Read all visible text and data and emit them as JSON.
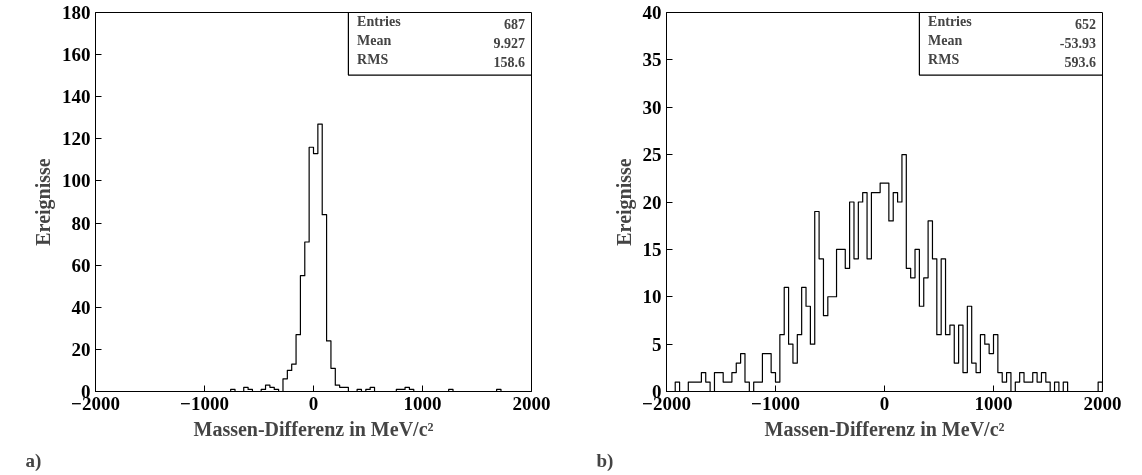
{
  "chart_data": [
    {
      "type": "histogram",
      "xlabel": "Massen-Differenz in MeV/c²",
      "ylabel": "Ereignisse",
      "annotations": [
        "a)",
        "Entries",
        "687",
        "Mean",
        "9.927",
        "RMS",
        "158.6"
      ],
      "bins": [
        -2000,
        -1960,
        -1920,
        -1880,
        -1840,
        -1800,
        -1760,
        -1720,
        -1680,
        -1640,
        -1600,
        -1560,
        -1520,
        -1480,
        -1440,
        -1400,
        -1360,
        -1320,
        -1280,
        -1240,
        -1200,
        -1160,
        -1120,
        -1080,
        -1040,
        -1000,
        -960,
        -920,
        -880,
        -840,
        -800,
        -760,
        -720,
        -680,
        -640,
        -600,
        -560,
        -520,
        -480,
        -440,
        -400,
        -360,
        -320,
        -280,
        -240,
        -200,
        -160,
        -120,
        -80,
        -40,
        0,
        40,
        80,
        120,
        160,
        200,
        240,
        280,
        320,
        360,
        400,
        440,
        480,
        520,
        560,
        600,
        640,
        680,
        720,
        760,
        800,
        840,
        880,
        920,
        960,
        1000,
        1040,
        1080,
        1120,
        1160,
        1200,
        1240,
        1280,
        1320,
        1360,
        1400,
        1440,
        1480,
        1520,
        1560,
        1600,
        1640,
        1680,
        1720,
        1760,
        1800,
        1840,
        1880,
        1920,
        1960,
        2000
      ],
      "values": [
        0,
        0,
        0,
        0,
        0,
        0,
        0,
        0,
        0,
        0,
        0,
        0,
        0,
        0,
        0,
        0,
        0,
        0,
        0,
        0,
        0,
        0,
        0,
        0,
        0,
        0,
        0,
        0,
        0,
        0,
        0,
        1,
        0,
        0,
        2,
        1,
        0,
        0,
        1,
        3,
        2,
        1,
        0,
        6,
        10,
        13,
        27,
        55,
        71,
        116,
        113,
        127,
        84,
        24,
        11,
        3,
        2,
        2,
        0,
        0,
        1,
        0,
        1,
        2,
        0,
        0,
        0,
        0,
        0,
        1,
        1,
        2,
        1,
        0,
        0,
        0,
        0,
        0,
        0,
        0,
        0,
        1,
        0,
        0,
        0,
        0,
        0,
        0,
        0,
        0,
        0,
        0,
        1,
        0,
        0,
        0,
        0,
        0,
        0,
        0
      ],
      "xlim": [
        -2000,
        2000
      ],
      "xticks": [
        -2000,
        -1000,
        0,
        1000,
        2000
      ],
      "ylim": [
        0,
        180
      ],
      "yticks": [
        0,
        20,
        40,
        60,
        80,
        100,
        120,
        140,
        160,
        180
      ]
    },
    {
      "type": "histogram",
      "xlabel": "Massen-Differenz in MeV/c²",
      "ylabel": "Ereignisse",
      "annotations": [
        "b)",
        "Entries",
        "652",
        "Mean",
        "-53.93",
        "RMS",
        "593.6"
      ],
      "bins": [
        -2000,
        -1960,
        -1920,
        -1880,
        -1840,
        -1800,
        -1760,
        -1720,
        -1680,
        -1640,
        -1600,
        -1560,
        -1520,
        -1480,
        -1440,
        -1400,
        -1360,
        -1320,
        -1280,
        -1240,
        -1200,
        -1160,
        -1120,
        -1080,
        -1040,
        -1000,
        -960,
        -920,
        -880,
        -840,
        -800,
        -760,
        -720,
        -680,
        -640,
        -600,
        -560,
        -520,
        -480,
        -440,
        -400,
        -360,
        -320,
        -280,
        -240,
        -200,
        -160,
        -120,
        -80,
        -40,
        0,
        40,
        80,
        120,
        160,
        200,
        240,
        280,
        320,
        360,
        400,
        440,
        480,
        520,
        560,
        600,
        640,
        680,
        720,
        760,
        800,
        840,
        880,
        920,
        960,
        1000,
        1040,
        1080,
        1120,
        1160,
        1200,
        1240,
        1280,
        1320,
        1360,
        1400,
        1440,
        1480,
        1520,
        1560,
        1600,
        1640,
        1680,
        1720,
        1760,
        1800,
        1840,
        1880,
        1920,
        1960,
        2000
      ],
      "values": [
        0,
        0,
        1,
        0,
        0,
        1,
        1,
        1,
        2,
        1,
        0,
        2,
        2,
        1,
        1,
        2,
        3,
        4,
        1,
        0,
        1,
        1,
        4,
        4,
        2,
        1,
        6,
        11,
        5,
        3,
        6,
        11,
        9,
        5,
        19,
        14,
        8,
        10,
        10,
        15,
        15,
        13,
        20,
        14,
        20,
        21,
        14,
        21,
        21,
        22,
        22,
        18,
        21,
        20,
        25,
        13,
        12,
        15,
        9,
        12,
        18,
        14,
        6,
        14,
        6,
        7,
        3,
        7,
        2,
        9,
        3,
        2,
        6,
        5,
        4,
        6,
        2,
        1,
        2,
        0,
        1,
        2,
        1,
        1,
        2,
        1,
        2,
        1,
        0,
        1,
        0,
        1,
        0,
        0,
        0,
        0,
        0,
        0,
        0,
        1
      ],
      "xlim": [
        -2000,
        2000
      ],
      "xticks": [
        -2000,
        -1000,
        0,
        1000,
        2000
      ],
      "ylim": [
        0,
        40
      ],
      "yticks": [
        0,
        5,
        10,
        15,
        20,
        25,
        30,
        35,
        40
      ]
    }
  ]
}
